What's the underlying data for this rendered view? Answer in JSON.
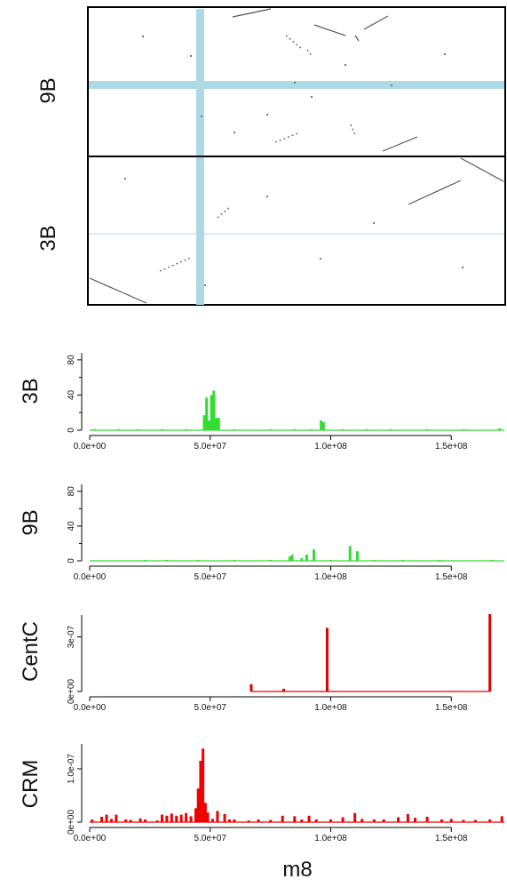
{
  "dotplot": {
    "row_labels": [
      "9B",
      "3B"
    ],
    "highlight_color": "#add8e6"
  },
  "x_axis_label": "m8",
  "x_ticks": [
    "0.0e+00",
    "5.0e+07",
    "1.0e+08",
    "1.5e+08"
  ],
  "chart_data": [
    {
      "type": "bar",
      "ylabel": "3B",
      "color": "#33dd33",
      "xlim": [
        0,
        172000000
      ],
      "ylim": [
        0,
        90
      ],
      "yticks": [
        "0",
        "40",
        "80"
      ],
      "x": [
        2000000.0,
        12000000.0,
        20000000.0,
        30000000.0,
        40000000.0,
        47500000.0,
        48500000.0,
        49500000.0,
        50500000.0,
        51500000.0,
        52500000.0,
        53500000.0,
        60000000.0,
        75000000.0,
        85000000.0,
        92000000.0,
        96000000.0,
        97000000.0,
        105000000.0,
        115000000.0,
        125000000.0,
        140000000.0,
        155000000.0,
        170000000.0
      ],
      "values": [
        1,
        1,
        1,
        1,
        1,
        17,
        37,
        11,
        40,
        45,
        14,
        14,
        1,
        1,
        1,
        1,
        11,
        9,
        1,
        1,
        1,
        1,
        1,
        2
      ]
    },
    {
      "type": "bar",
      "ylabel": "9B",
      "color": "#33dd33",
      "xlim": [
        0,
        172000000
      ],
      "ylim": [
        0,
        90
      ],
      "yticks": [
        "0",
        "40",
        "80"
      ],
      "x": [
        23000000.0,
        32000000.0,
        45000000.0,
        60000000.0,
        75000000.0,
        83000000.0,
        84000000.0,
        88000000.0,
        90000000.0,
        93000000.0,
        100000000.0,
        108000000.0,
        111000000.0,
        118000000.0,
        130000000.0,
        145000000.0,
        167000000.0
      ],
      "values": [
        1,
        1,
        1,
        1,
        1,
        5,
        7,
        3,
        7,
        13,
        1,
        17,
        11,
        1,
        1,
        1,
        1
      ]
    },
    {
      "type": "bar",
      "ylabel": "CentC",
      "color": "#dd0000",
      "xlim": [
        0,
        172000000
      ],
      "ylim": [
        0,
        4.3e-07
      ],
      "yticks": [
        "0e+00",
        "3e-07"
      ],
      "x": [
        67000000.0,
        80500000.0,
        98500000.0,
        166000000.0
      ],
      "values": [
        4e-08,
        1.5e-08,
        3.5e-07,
        4.25e-07
      ],
      "baseline_extent": [
        67000000.0,
        166000000.0
      ]
    },
    {
      "type": "bar",
      "ylabel": "CRM",
      "color": "#ee0000",
      "xlim": [
        0,
        172000000
      ],
      "ylim": [
        0,
        1.5e-07
      ],
      "yticks": [
        "0e+00",
        "1.0e-07"
      ],
      "x": [
        1000000.0,
        5000000.0,
        7000000.0,
        9000000.0,
        11000000.0,
        15000000.0,
        17000000.0,
        21000000.0,
        23000000.0,
        28000000.0,
        30000000.0,
        32000000.0,
        34000000.0,
        36000000.0,
        38000000.0,
        40000000.0,
        42000000.0,
        44000000.0,
        45000000.0,
        46000000.0,
        47000000.0,
        48000000.0,
        49000000.0,
        51000000.0,
        53000000.0,
        56000000.0,
        58000000.0,
        60000000.0,
        66000000.0,
        70000000.0,
        75000000.0,
        80000000.0,
        85000000.0,
        88000000.0,
        91000000.0,
        94000000.0,
        100000000.0,
        105000000.0,
        110000000.0,
        113000000.0,
        118000000.0,
        122000000.0,
        128000000.0,
        132000000.0,
        135000000.0,
        140000000.0,
        146000000.0,
        150000000.0,
        155000000.0,
        160000000.0,
        166000000.0,
        171000000.0
      ],
      "values": [
        5e-09,
        1e-08,
        1.4e-08,
        6e-09,
        1.4e-08,
        5e-09,
        4e-09,
        7e-09,
        5e-09,
        3e-09,
        1.4e-08,
        1.2e-08,
        1.6e-08,
        1.2e-08,
        1.4e-08,
        1.7e-08,
        1.1e-08,
        2.6e-08,
        6.3e-08,
        1.15e-07,
        1.38e-07,
        3.6e-08,
        1.8e-08,
        6e-09,
        2.1e-08,
        1.5e-08,
        5e-09,
        5e-09,
        3e-09,
        5e-09,
        4e-09,
        1.2e-08,
        1.1e-08,
        5e-09,
        1.2e-08,
        5e-09,
        5e-09,
        9e-09,
        1.7e-08,
        6e-09,
        5e-09,
        5e-09,
        9e-09,
        1.5e-08,
        8e-09,
        1e-08,
        5e-09,
        6e-09,
        4e-09,
        4e-09,
        5e-09,
        1.1e-08
      ]
    }
  ]
}
